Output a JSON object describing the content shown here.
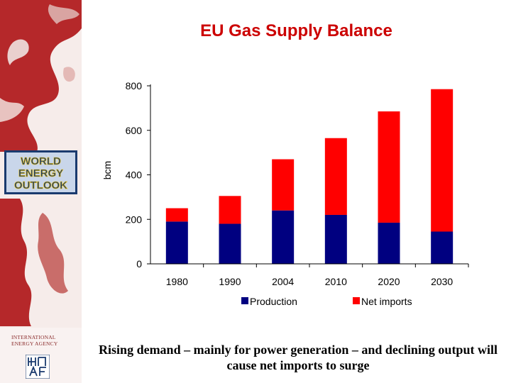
{
  "sidebar": {
    "logo_lines": [
      "WORLD",
      "ENERGY",
      "OUTLOOK"
    ],
    "agency_text": "INTERNATIONAL ENERGY AGENCY",
    "agency_logo_icon": "iea-monogram-icon"
  },
  "slide": {
    "title": "EU Gas Supply Balance",
    "caption": "Rising demand – mainly for power generation – and declining output will cause net imports to surge"
  },
  "colors": {
    "title": "#cc0000",
    "production": "#000080",
    "net_imports": "#ff0000",
    "sidebar_red": "#b5282a"
  },
  "chart_data": {
    "type": "bar",
    "stacked": true,
    "categories": [
      "1980",
      "1990",
      "2004",
      "2010",
      "2020",
      "2030"
    ],
    "series": [
      {
        "name": "Production",
        "values": [
          190,
          180,
          240,
          220,
          185,
          145
        ]
      },
      {
        "name": "Net imports",
        "values": [
          60,
          125,
          230,
          345,
          500,
          640
        ]
      }
    ],
    "ylabel": "bcm",
    "ylim": [
      0,
      800
    ],
    "yticks": [
      "0",
      "200",
      "400",
      "600",
      "800"
    ],
    "grid": false,
    "legend": "bottom"
  }
}
